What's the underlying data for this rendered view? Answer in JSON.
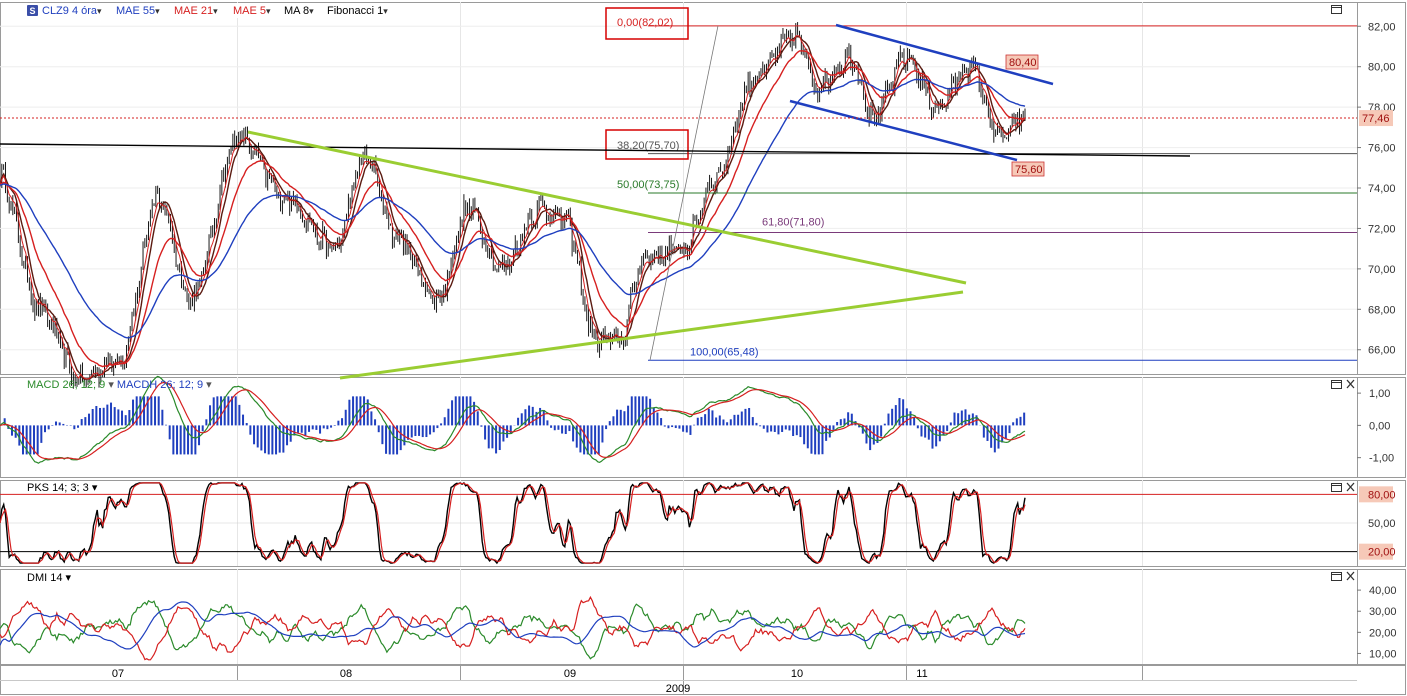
{
  "toolbar": {
    "logo_glyph": "S",
    "items": [
      {
        "label": "CLZ9 4 óra",
        "color": "#1f3fbf"
      },
      {
        "label": "MAE 55",
        "color": "#1f3fbf"
      },
      {
        "label": "MAE 21",
        "color": "#d62020"
      },
      {
        "label": "MAE 5",
        "color": "#d62020"
      },
      {
        "label": "MA 8",
        "color": "#000000"
      },
      {
        "label": "Fibonacci 1",
        "color": "#000000"
      }
    ]
  },
  "price_panel": {
    "y_ticks": [
      "82,00",
      "80,00",
      "78,00",
      "76,00",
      "74,00",
      "72,00",
      "70,00",
      "68,00",
      "66,00"
    ],
    "y_tick_values": [
      82,
      80,
      78,
      76,
      74,
      72,
      70,
      68,
      66
    ],
    "ylim": [
      64.8,
      83.2
    ],
    "current_price": "77,46",
    "current_price_value": 77.46,
    "channel_upper_label": "80,40",
    "channel_lower_label": "75,60",
    "fib_levels": [
      {
        "label": "0,00(82,02)",
        "value": 82.02,
        "color": "#d62020",
        "boxed": true
      },
      {
        "label": "38,20(75,70)",
        "value": 75.7,
        "color": "#555555",
        "boxed": true
      },
      {
        "label": "50,00(73,75)",
        "value": 73.75,
        "color": "#2a7a2a",
        "boxed": false
      },
      {
        "label": "61,80(71,80)",
        "value": 71.8,
        "color": "#7a3a7a",
        "boxed": false
      },
      {
        "label": "100,00(65,48)",
        "value": 65.48,
        "color": "#1f3fbf",
        "boxed": false
      }
    ]
  },
  "macd_panel": {
    "label_macd": "MACD 26; 12; 9",
    "label_macdh": "MACDH 26; 12; 9",
    "y_ticks": [
      "1,00",
      "0,00",
      "-1,00"
    ],
    "y_tick_values": [
      1,
      0,
      -1
    ]
  },
  "pks_panel": {
    "label": "PKS 14; 3; 3",
    "y_ticks": [
      "80,00",
      "50,00",
      "20,00"
    ],
    "y_tick_values": [
      80,
      50,
      20
    ]
  },
  "dmi_panel": {
    "label": "DMI 14",
    "y_ticks": [
      "40,00",
      "30,00",
      "20,00",
      "10,00"
    ],
    "y_tick_values": [
      40,
      30,
      20,
      10
    ]
  },
  "x_axis": {
    "months": [
      "07",
      "08",
      "09",
      "10",
      "11"
    ],
    "year": "2009"
  },
  "colors": {
    "price_candles": "#000000",
    "mae55": "#1f3fbf",
    "mae21": "#d62020",
    "ma8": "#5a1a10",
    "trend_green": "#9acd32",
    "channel_blue": "#1f3fbf",
    "macd": "#2a8a2a",
    "signal": "#d62020",
    "macdh": "#1f3fbf",
    "dmi_plus": "#2a8a2a",
    "dmi_minus": "#d62020",
    "adx": "#1f3fbf"
  },
  "chart_data": [
    {
      "type": "line",
      "title": "CLZ9 4 óra",
      "x": [
        "07",
        "08",
        "09",
        "10",
        "11"
      ],
      "series": [
        {
          "name": "CLZ9 4 óra",
          "anchor_points": [
            [
              0,
              74.5
            ],
            [
              0.05,
              68.0
            ],
            [
              0.1,
              64.5
            ],
            [
              0.15,
              65.5
            ],
            [
              0.2,
              73.5
            ],
            [
              0.24,
              68.5
            ],
            [
              0.3,
              76.5
            ],
            [
              0.36,
              73.5
            ],
            [
              0.42,
              71.0
            ],
            [
              0.46,
              75.5
            ],
            [
              0.5,
              71.5
            ],
            [
              0.55,
              68.5
            ],
            [
              0.59,
              73.0
            ],
            [
              0.63,
              70.0
            ],
            [
              0.68,
              73.0
            ],
            [
              0.71,
              72.5
            ],
            [
              0.75,
              66.5
            ],
            [
              0.78,
              66.5
            ],
            [
              0.81,
              70.5
            ],
            [
              0.86,
              71.0
            ],
            [
              0.9,
              74.5
            ],
            [
              0.95,
              79.5
            ],
            [
              1.0,
              81.5
            ],
            [
              1.03,
              79.0
            ],
            [
              1.07,
              80.5
            ],
            [
              1.1,
              77.5
            ],
            [
              1.14,
              80.5
            ],
            [
              1.18,
              78.0
            ],
            [
              1.22,
              80.0
            ],
            [
              1.26,
              76.5
            ],
            [
              1.29,
              77.46
            ]
          ]
        },
        {
          "name": "MAE 55"
        },
        {
          "name": "MAE 21"
        },
        {
          "name": "MAE 5"
        },
        {
          "name": "MA 8"
        }
      ],
      "ylim": [
        64.8,
        83.2
      ],
      "fibonacci": [
        [
          "0,00",
          82.02
        ],
        [
          "38,20",
          75.7
        ],
        [
          "50,00",
          73.75
        ],
        [
          "61,80",
          71.8
        ],
        [
          "100,00",
          65.48
        ]
      ],
      "annotations": [
        "80,40",
        "75,60",
        "77,46"
      ]
    },
    {
      "type": "line",
      "title": "MACD 26; 12; 9",
      "series": [
        {
          "name": "MACD 26; 12; 9"
        },
        {
          "name": "MACDH 26; 12; 9"
        }
      ],
      "ylim": [
        -1.6,
        1.5
      ]
    },
    {
      "type": "line",
      "title": "PKS 14; 3; 3",
      "ylim": [
        5,
        95
      ],
      "reference_lines": [
        80,
        20
      ]
    },
    {
      "type": "line",
      "title": "DMI 14",
      "ylim": [
        5,
        50
      ]
    }
  ]
}
